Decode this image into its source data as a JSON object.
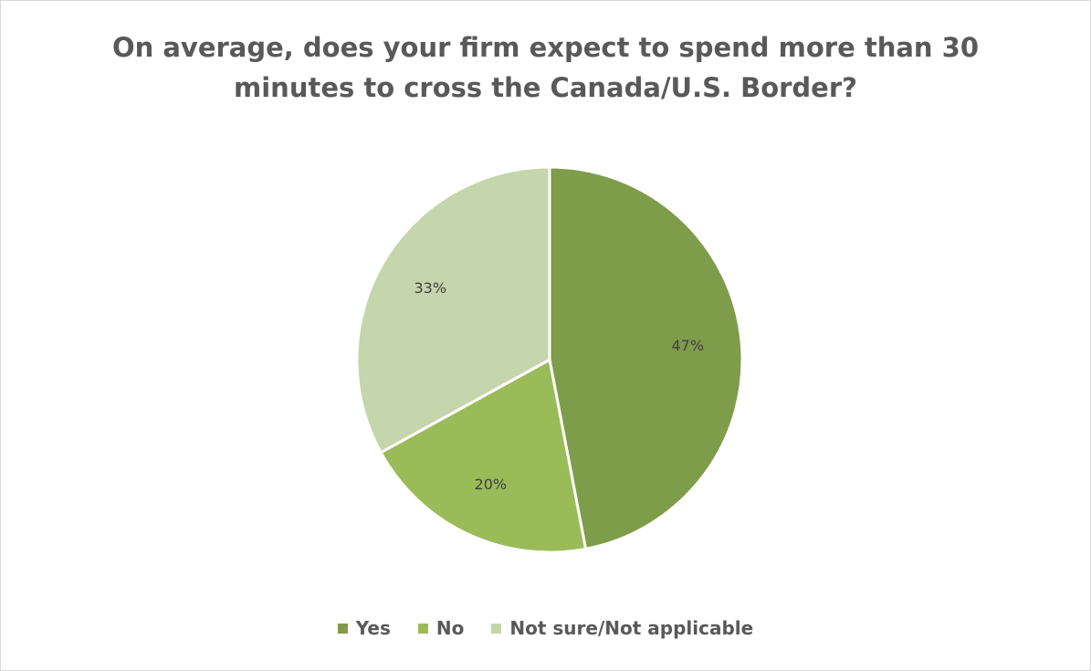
{
  "chart_data": {
    "type": "pie",
    "title_lines": [
      "On average, does your firm expect to spend more than 30",
      "minutes to cross the Canada/U.S. Border?"
    ],
    "categories": [
      "Yes",
      "No",
      "Not sure/Not applicable"
    ],
    "values": [
      47,
      20,
      33
    ],
    "labels": [
      "47%",
      "20%",
      "33%"
    ],
    "colors": [
      "#7f9c4a",
      "#9bbb59",
      "#c5d5ac"
    ],
    "legend_position": "bottom",
    "start_angle": "12 o'clock",
    "direction": "clockwise"
  }
}
